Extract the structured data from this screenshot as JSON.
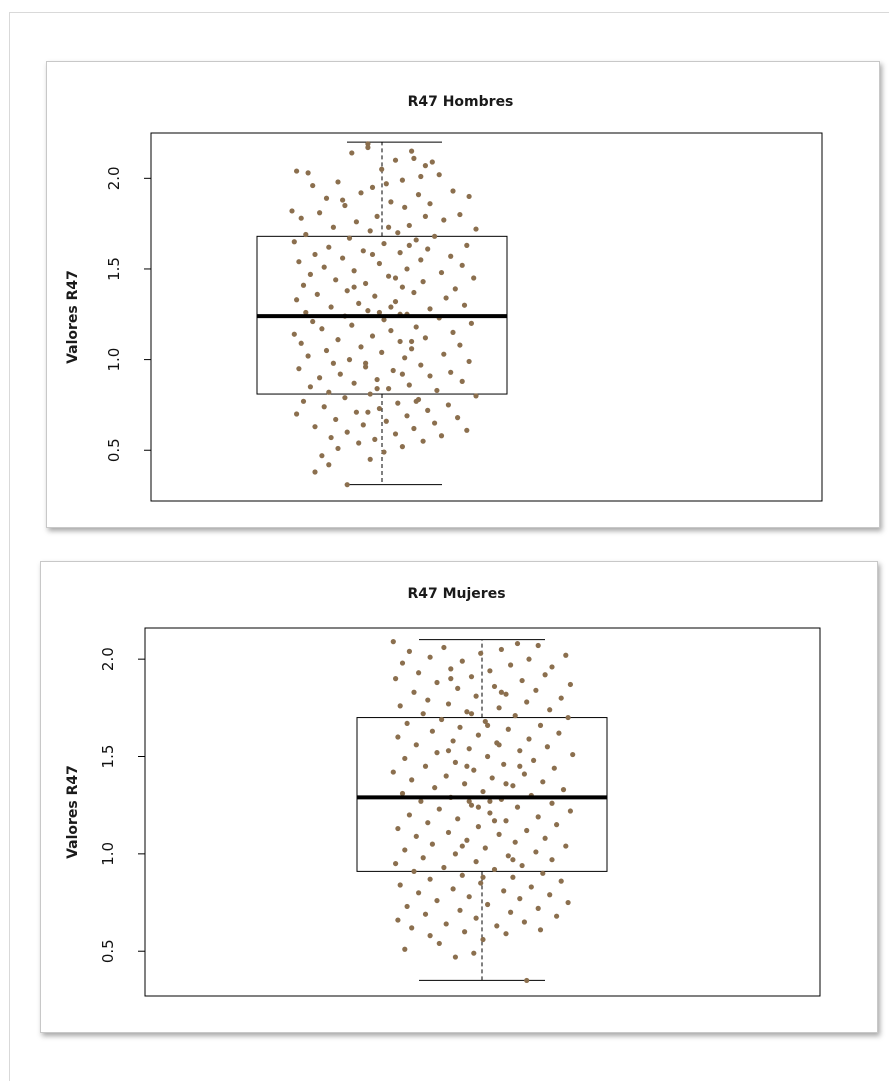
{
  "chart_data": [
    {
      "type": "box",
      "title": "R47 Hombres",
      "ylabel": "Valores  R47",
      "xlabel": "",
      "ylim": [
        0.22,
        2.25
      ],
      "yticks": [
        "0.5",
        "1.0",
        "1.5",
        "2.0"
      ],
      "box": {
        "whisker_low": 0.31,
        "q1": 0.81,
        "median": 1.24,
        "q3": 1.68,
        "whisker_high": 2.2
      },
      "points": [
        [
          0.34,
          0.31
        ],
        [
          0.43,
          2.19
        ],
        [
          0.43,
          2.17
        ],
        [
          0.62,
          2.15
        ],
        [
          0.36,
          2.14
        ],
        [
          0.63,
          2.11
        ],
        [
          0.55,
          2.1
        ],
        [
          0.71,
          2.09
        ],
        [
          0.68,
          2.07
        ],
        [
          0.49,
          2.05
        ],
        [
          0.12,
          2.04
        ],
        [
          0.17,
          2.03
        ],
        [
          0.74,
          2.02
        ],
        [
          0.66,
          2.01
        ],
        [
          0.58,
          1.99
        ],
        [
          0.3,
          1.98
        ],
        [
          0.51,
          1.97
        ],
        [
          0.19,
          1.96
        ],
        [
          0.45,
          1.95
        ],
        [
          0.8,
          1.93
        ],
        [
          0.4,
          1.92
        ],
        [
          0.65,
          1.91
        ],
        [
          0.87,
          1.9
        ],
        [
          0.25,
          1.89
        ],
        [
          0.53,
          1.87
        ],
        [
          0.7,
          1.86
        ],
        [
          0.33,
          1.85
        ],
        [
          0.59,
          1.84
        ],
        [
          0.1,
          1.82
        ],
        [
          0.22,
          1.81
        ],
        [
          0.83,
          1.8
        ],
        [
          0.47,
          1.79
        ],
        [
          0.14,
          1.78
        ],
        [
          0.76,
          1.77
        ],
        [
          0.38,
          1.76
        ],
        [
          0.61,
          1.74
        ],
        [
          0.28,
          1.73
        ],
        [
          0.9,
          1.72
        ],
        [
          0.44,
          1.71
        ],
        [
          0.56,
          1.7
        ],
        [
          0.16,
          1.69
        ],
        [
          0.72,
          1.68
        ],
        [
          0.35,
          1.67
        ],
        [
          0.64,
          1.66
        ],
        [
          0.11,
          1.65
        ],
        [
          0.5,
          1.64
        ],
        [
          0.86,
          1.63
        ],
        [
          0.26,
          1.62
        ],
        [
          0.69,
          1.61
        ],
        [
          0.41,
          1.6
        ],
        [
          0.57,
          1.59
        ],
        [
          0.2,
          1.58
        ],
        [
          0.79,
          1.57
        ],
        [
          0.32,
          1.56
        ],
        [
          0.66,
          1.55
        ],
        [
          0.13,
          1.54
        ],
        [
          0.48,
          1.53
        ],
        [
          0.84,
          1.52
        ],
        [
          0.24,
          1.51
        ],
        [
          0.6,
          1.5
        ],
        [
          0.37,
          1.49
        ],
        [
          0.75,
          1.48
        ],
        [
          0.18,
          1.47
        ],
        [
          0.52,
          1.46
        ],
        [
          0.89,
          1.45
        ],
        [
          0.29,
          1.44
        ],
        [
          0.67,
          1.43
        ],
        [
          0.42,
          1.42
        ],
        [
          0.15,
          1.41
        ],
        [
          0.58,
          1.4
        ],
        [
          0.81,
          1.39
        ],
        [
          0.34,
          1.38
        ],
        [
          0.63,
          1.37
        ],
        [
          0.21,
          1.36
        ],
        [
          0.46,
          1.35
        ],
        [
          0.77,
          1.34
        ],
        [
          0.12,
          1.33
        ],
        [
          0.55,
          1.32
        ],
        [
          0.39,
          1.31
        ],
        [
          0.85,
          1.3
        ],
        [
          0.27,
          1.29
        ],
        [
          0.7,
          1.28
        ],
        [
          0.43,
          1.27
        ],
        [
          0.16,
          1.26
        ],
        [
          0.6,
          1.25
        ],
        [
          0.33,
          1.24
        ],
        [
          0.74,
          1.23
        ],
        [
          0.5,
          1.22
        ],
        [
          0.19,
          1.21
        ],
        [
          0.88,
          1.2
        ],
        [
          0.36,
          1.19
        ],
        [
          0.64,
          1.18
        ],
        [
          0.23,
          1.17
        ],
        [
          0.53,
          1.16
        ],
        [
          0.8,
          1.15
        ],
        [
          0.11,
          1.14
        ],
        [
          0.45,
          1.13
        ],
        [
          0.68,
          1.12
        ],
        [
          0.3,
          1.11
        ],
        [
          0.57,
          1.1
        ],
        [
          0.14,
          1.09
        ],
        [
          0.83,
          1.08
        ],
        [
          0.4,
          1.07
        ],
        [
          0.62,
          1.06
        ],
        [
          0.25,
          1.05
        ],
        [
          0.49,
          1.04
        ],
        [
          0.76,
          1.03
        ],
        [
          0.17,
          1.02
        ],
        [
          0.59,
          1.01
        ],
        [
          0.35,
          1.0
        ],
        [
          0.87,
          0.99
        ],
        [
          0.28,
          0.98
        ],
        [
          0.66,
          0.97
        ],
        [
          0.42,
          0.96
        ],
        [
          0.13,
          0.95
        ],
        [
          0.54,
          0.94
        ],
        [
          0.79,
          0.93
        ],
        [
          0.31,
          0.92
        ],
        [
          0.7,
          0.91
        ],
        [
          0.22,
          0.9
        ],
        [
          0.47,
          0.89
        ],
        [
          0.84,
          0.88
        ],
        [
          0.37,
          0.87
        ],
        [
          0.61,
          0.86
        ],
        [
          0.18,
          0.85
        ],
        [
          0.52,
          0.84
        ],
        [
          0.73,
          0.83
        ],
        [
          0.26,
          0.82
        ],
        [
          0.44,
          0.81
        ],
        [
          0.9,
          0.8
        ],
        [
          0.33,
          0.79
        ],
        [
          0.65,
          0.78
        ],
        [
          0.15,
          0.77
        ],
        [
          0.56,
          0.76
        ],
        [
          0.78,
          0.75
        ],
        [
          0.24,
          0.74
        ],
        [
          0.48,
          0.73
        ],
        [
          0.69,
          0.72
        ],
        [
          0.38,
          0.71
        ],
        [
          0.12,
          0.7
        ],
        [
          0.6,
          0.69
        ],
        [
          0.82,
          0.68
        ],
        [
          0.29,
          0.67
        ],
        [
          0.51,
          0.66
        ],
        [
          0.72,
          0.65
        ],
        [
          0.41,
          0.64
        ],
        [
          0.2,
          0.63
        ],
        [
          0.63,
          0.62
        ],
        [
          0.86,
          0.61
        ],
        [
          0.34,
          0.6
        ],
        [
          0.55,
          0.59
        ],
        [
          0.75,
          0.58
        ],
        [
          0.27,
          0.57
        ],
        [
          0.46,
          0.56
        ],
        [
          0.67,
          0.55
        ],
        [
          0.39,
          0.54
        ],
        [
          0.58,
          0.52
        ],
        [
          0.3,
          0.51
        ],
        [
          0.5,
          0.49
        ],
        [
          0.23,
          0.47
        ],
        [
          0.44,
          0.45
        ],
        [
          0.26,
          0.42
        ],
        [
          0.2,
          0.38
        ],
        [
          0.48,
          1.26
        ],
        [
          0.53,
          1.29
        ],
        [
          0.57,
          1.25
        ],
        [
          0.45,
          1.58
        ],
        [
          0.61,
          1.63
        ],
        [
          0.52,
          1.73
        ],
        [
          0.42,
          0.98
        ],
        [
          0.58,
          0.92
        ],
        [
          0.47,
          0.84
        ],
        [
          0.62,
          1.1
        ],
        [
          0.37,
          1.4
        ],
        [
          0.55,
          1.45
        ],
        [
          0.32,
          1.88
        ],
        [
          0.68,
          1.79
        ],
        [
          0.43,
          0.71
        ],
        [
          0.64,
          0.77
        ]
      ]
    },
    {
      "type": "box",
      "title": "R47 Mujeres",
      "ylabel": "Valores R47",
      "xlabel": "",
      "ylim": [
        0.27,
        2.16
      ],
      "yticks": [
        "0.5",
        "1.0",
        "1.5",
        "2.0"
      ],
      "box": {
        "whisker_low": 0.35,
        "q1": 0.91,
        "median": 1.29,
        "q3": 1.7,
        "whisker_high": 2.1
      },
      "points": [
        [
          0.11,
          2.09
        ],
        [
          0.65,
          2.08
        ],
        [
          0.74,
          2.07
        ],
        [
          0.33,
          2.06
        ],
        [
          0.58,
          2.05
        ],
        [
          0.18,
          2.04
        ],
        [
          0.49,
          2.03
        ],
        [
          0.86,
          2.02
        ],
        [
          0.27,
          2.01
        ],
        [
          0.7,
          2.0
        ],
        [
          0.41,
          1.99
        ],
        [
          0.15,
          1.98
        ],
        [
          0.62,
          1.97
        ],
        [
          0.8,
          1.96
        ],
        [
          0.36,
          1.95
        ],
        [
          0.53,
          1.94
        ],
        [
          0.22,
          1.93
        ],
        [
          0.77,
          1.92
        ],
        [
          0.45,
          1.91
        ],
        [
          0.12,
          1.9
        ],
        [
          0.67,
          1.89
        ],
        [
          0.3,
          1.88
        ],
        [
          0.88,
          1.87
        ],
        [
          0.55,
          1.86
        ],
        [
          0.39,
          1.85
        ],
        [
          0.73,
          1.84
        ],
        [
          0.2,
          1.83
        ],
        [
          0.6,
          1.82
        ],
        [
          0.47,
          1.81
        ],
        [
          0.84,
          1.8
        ],
        [
          0.26,
          1.79
        ],
        [
          0.69,
          1.78
        ],
        [
          0.35,
          1.77
        ],
        [
          0.14,
          1.76
        ],
        [
          0.57,
          1.75
        ],
        [
          0.79,
          1.74
        ],
        [
          0.43,
          1.73
        ],
        [
          0.24,
          1.72
        ],
        [
          0.64,
          1.71
        ],
        [
          0.87,
          1.7
        ],
        [
          0.32,
          1.69
        ],
        [
          0.51,
          1.68
        ],
        [
          0.17,
          1.67
        ],
        [
          0.75,
          1.66
        ],
        [
          0.4,
          1.65
        ],
        [
          0.61,
          1.64
        ],
        [
          0.28,
          1.63
        ],
        [
          0.83,
          1.62
        ],
        [
          0.48,
          1.61
        ],
        [
          0.13,
          1.6
        ],
        [
          0.7,
          1.59
        ],
        [
          0.37,
          1.58
        ],
        [
          0.56,
          1.57
        ],
        [
          0.21,
          1.56
        ],
        [
          0.78,
          1.55
        ],
        [
          0.44,
          1.54
        ],
        [
          0.66,
          1.53
        ],
        [
          0.3,
          1.52
        ],
        [
          0.89,
          1.51
        ],
        [
          0.52,
          1.5
        ],
        [
          0.16,
          1.49
        ],
        [
          0.72,
          1.48
        ],
        [
          0.38,
          1.47
        ],
        [
          0.59,
          1.46
        ],
        [
          0.25,
          1.45
        ],
        [
          0.81,
          1.44
        ],
        [
          0.46,
          1.43
        ],
        [
          0.11,
          1.42
        ],
        [
          0.68,
          1.41
        ],
        [
          0.34,
          1.4
        ],
        [
          0.54,
          1.39
        ],
        [
          0.19,
          1.38
        ],
        [
          0.76,
          1.37
        ],
        [
          0.42,
          1.36
        ],
        [
          0.63,
          1.35
        ],
        [
          0.29,
          1.34
        ],
        [
          0.85,
          1.33
        ],
        [
          0.5,
          1.32
        ],
        [
          0.15,
          1.31
        ],
        [
          0.71,
          1.3
        ],
        [
          0.36,
          1.29
        ],
        [
          0.58,
          1.28
        ],
        [
          0.23,
          1.27
        ],
        [
          0.8,
          1.26
        ],
        [
          0.45,
          1.25
        ],
        [
          0.65,
          1.24
        ],
        [
          0.31,
          1.23
        ],
        [
          0.88,
          1.22
        ],
        [
          0.53,
          1.21
        ],
        [
          0.18,
          1.2
        ],
        [
          0.74,
          1.19
        ],
        [
          0.39,
          1.18
        ],
        [
          0.6,
          1.17
        ],
        [
          0.26,
          1.16
        ],
        [
          0.82,
          1.15
        ],
        [
          0.48,
          1.14
        ],
        [
          0.13,
          1.13
        ],
        [
          0.69,
          1.12
        ],
        [
          0.35,
          1.11
        ],
        [
          0.57,
          1.1
        ],
        [
          0.21,
          1.09
        ],
        [
          0.77,
          1.08
        ],
        [
          0.43,
          1.07
        ],
        [
          0.64,
          1.06
        ],
        [
          0.28,
          1.05
        ],
        [
          0.86,
          1.04
        ],
        [
          0.51,
          1.03
        ],
        [
          0.16,
          1.02
        ],
        [
          0.73,
          1.01
        ],
        [
          0.38,
          1.0
        ],
        [
          0.61,
          0.99
        ],
        [
          0.24,
          0.98
        ],
        [
          0.8,
          0.97
        ],
        [
          0.47,
          0.96
        ],
        [
          0.12,
          0.95
        ],
        [
          0.67,
          0.94
        ],
        [
          0.33,
          0.93
        ],
        [
          0.55,
          0.92
        ],
        [
          0.2,
          0.91
        ],
        [
          0.76,
          0.9
        ],
        [
          0.41,
          0.89
        ],
        [
          0.63,
          0.88
        ],
        [
          0.27,
          0.87
        ],
        [
          0.84,
          0.86
        ],
        [
          0.49,
          0.85
        ],
        [
          0.14,
          0.84
        ],
        [
          0.71,
          0.83
        ],
        [
          0.37,
          0.82
        ],
        [
          0.59,
          0.81
        ],
        [
          0.22,
          0.8
        ],
        [
          0.79,
          0.79
        ],
        [
          0.44,
          0.78
        ],
        [
          0.66,
          0.77
        ],
        [
          0.3,
          0.76
        ],
        [
          0.87,
          0.75
        ],
        [
          0.52,
          0.74
        ],
        [
          0.17,
          0.73
        ],
        [
          0.74,
          0.72
        ],
        [
          0.4,
          0.71
        ],
        [
          0.62,
          0.7
        ],
        [
          0.25,
          0.69
        ],
        [
          0.82,
          0.68
        ],
        [
          0.47,
          0.67
        ],
        [
          0.13,
          0.66
        ],
        [
          0.68,
          0.65
        ],
        [
          0.34,
          0.64
        ],
        [
          0.56,
          0.63
        ],
        [
          0.19,
          0.62
        ],
        [
          0.75,
          0.61
        ],
        [
          0.42,
          0.6
        ],
        [
          0.6,
          0.59
        ],
        [
          0.27,
          0.58
        ],
        [
          0.5,
          0.56
        ],
        [
          0.31,
          0.54
        ],
        [
          0.16,
          0.51
        ],
        [
          0.46,
          0.49
        ],
        [
          0.38,
          0.47
        ],
        [
          0.69,
          0.35
        ],
        [
          0.45,
          1.72
        ],
        [
          0.52,
          1.66
        ],
        [
          0.57,
          1.56
        ],
        [
          0.43,
          1.45
        ],
        [
          0.6,
          1.36
        ],
        [
          0.48,
          1.24
        ],
        [
          0.55,
          1.17
        ],
        [
          0.41,
          1.04
        ],
        [
          0.63,
          0.97
        ],
        [
          0.5,
          0.88
        ],
        [
          0.36,
          1.9
        ],
        [
          0.58,
          1.83
        ],
        [
          0.44,
          1.27
        ],
        [
          0.53,
          1.27
        ],
        [
          0.66,
          1.45
        ],
        [
          0.35,
          1.53
        ]
      ]
    }
  ],
  "colors": {
    "points": "#8b6f4e",
    "box": "#000000",
    "median": "#000000"
  }
}
